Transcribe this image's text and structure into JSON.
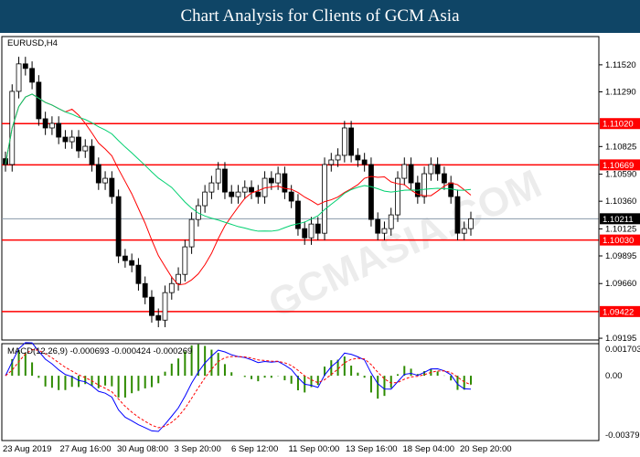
{
  "header": {
    "title": "Chart Analysis for Clients of GCM Asia"
  },
  "watermark": "GCMASIA.COM",
  "chart_data": {
    "type": "candlestick",
    "symbol_label": "EURUSD,H4",
    "price_axis_ticks": [
      "1.11520",
      "1.11290",
      "1.10825",
      "1.10590",
      "1.10360",
      "1.10125",
      "1.09895",
      "1.09660",
      "1.09195"
    ],
    "ylim": [
      1.0918,
      1.1176
    ],
    "levels": [
      {
        "value": 1.1102,
        "label": "1.11020",
        "color": "#ff0000"
      },
      {
        "value": 1.10669,
        "label": "1.10669",
        "color": "#ff0000"
      },
      {
        "value": 1.1003,
        "label": "1.10030",
        "color": "#ff0000"
      },
      {
        "value": 1.09422,
        "label": "1.09422",
        "color": "#ff0000"
      }
    ],
    "current_price": {
      "value": 1.10211,
      "label": "1.10211"
    },
    "closes": [
      1.10672,
      1.11294,
      1.11528,
      1.11489,
      1.11372,
      1.11061,
      1.10983,
      1.11022,
      1.10905,
      1.10866,
      1.10905,
      1.10788,
      1.10827,
      1.10672,
      1.10516,
      1.10555,
      1.10399,
      1.09894,
      1.09855,
      1.09816,
      1.0966,
      1.09544,
      1.09388,
      1.09349,
      1.09583,
      1.0966,
      1.09738,
      1.09972,
      1.10205,
      1.10322,
      1.10438,
      1.10516,
      1.10633,
      1.10438,
      1.10399,
      1.10438,
      1.10477,
      1.10438,
      1.10399,
      1.10555,
      1.10516,
      1.10594,
      1.10438,
      1.10361,
      1.10127,
      1.10049,
      1.10166,
      1.10088,
      1.10672,
      1.10711,
      1.1075,
      1.10983,
      1.1075,
      1.10711,
      1.10672,
      1.10205,
      1.10088,
      1.10127,
      1.10244,
      1.10555,
      1.10672,
      1.10516,
      1.10399,
      1.10594,
      1.10672,
      1.10594,
      1.10516,
      1.10399,
      1.10088,
      1.10127,
      1.10211
    ],
    "ma_colors": {
      "fast": "#ff0000",
      "slow": "#00d070"
    },
    "macd": {
      "label": "MACD(12,26,9) -0.000693 -0.000424 -0.000269",
      "ticks": [
        "0.001703",
        "0.00",
        "-0.003797"
      ],
      "ylim": [
        -0.003797,
        0.001703
      ],
      "main_color": "#0000ff",
      "signal_color": "#ff0000",
      "hist_color": "#2e8b00"
    },
    "x_labels": [
      "23 Aug 2019",
      "27 Aug 16:00",
      "30 Aug 08:00",
      "3 Sep 20:00",
      "6 Sep 12:00",
      "11 Sep 00:00",
      "13 Sep 16:00",
      "18 Sep 04:00",
      "20 Sep 20:00"
    ]
  }
}
